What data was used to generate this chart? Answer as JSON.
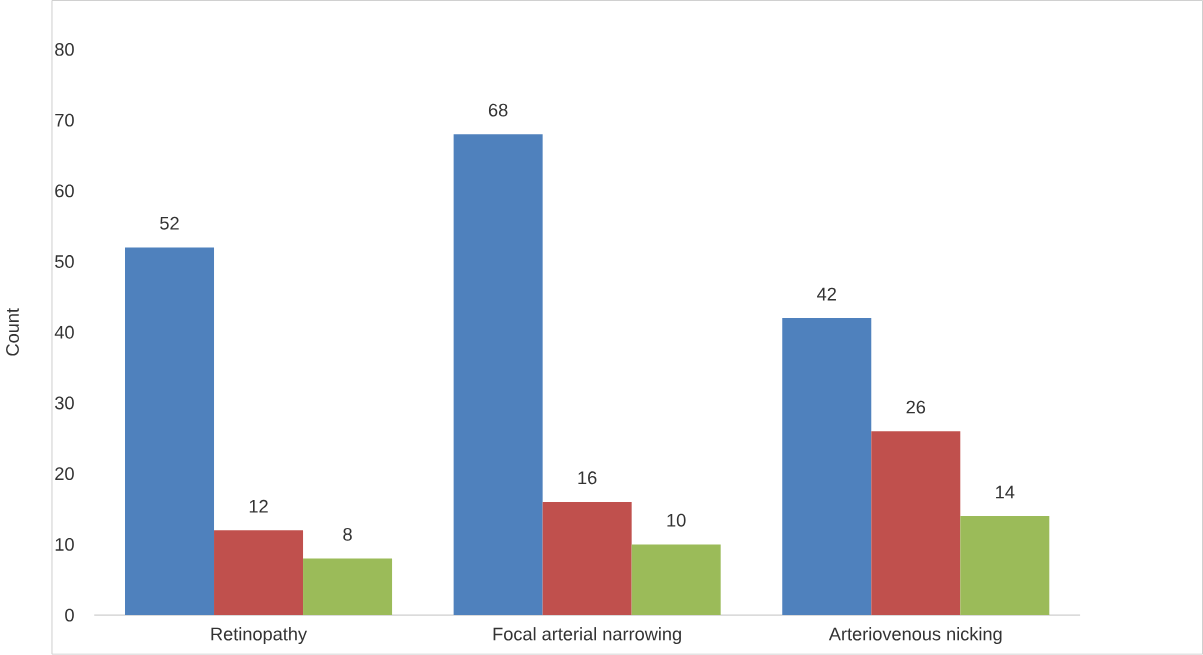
{
  "chart_data": {
    "type": "bar",
    "ylabel": "Count",
    "categories": [
      "Retinopathy",
      "Focal arterial narrowing",
      "Arteriovenous nicking"
    ],
    "series": [
      {
        "color": "#4f81bd",
        "values": [
          52,
          68,
          42
        ]
      },
      {
        "color": "#c0504d",
        "values": [
          12,
          16,
          26
        ]
      },
      {
        "color": "#9bbb59",
        "values": [
          8,
          10,
          14
        ]
      }
    ],
    "ylim": [
      0,
      80
    ],
    "yticks": [
      0,
      10,
      20,
      30,
      40,
      50,
      60,
      70,
      80
    ],
    "data_labels": true
  }
}
